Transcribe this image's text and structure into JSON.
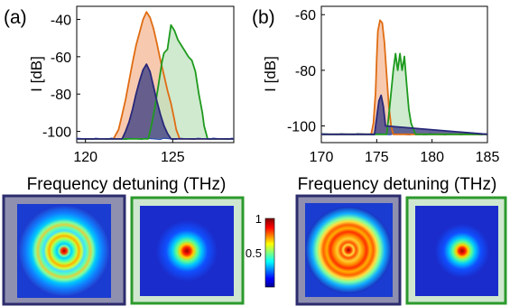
{
  "figure": {
    "panel_a_label": "(a)",
    "panel_b_label": "(b)",
    "colorbar_ticks": [
      "1",
      "0.5"
    ]
  },
  "colors": {
    "orange": "#e06c12",
    "green": "#1d9a1d",
    "navy": "#28287a",
    "blue_noise": "#2a4fb0",
    "frame_navy": "#2c2c6e",
    "frame_navy_fill": "#8f8fb0",
    "frame_green": "#2c9a2c",
    "frame_green_fill": "#cfe7cf"
  },
  "chart_data": [
    {
      "type": "area",
      "panel": "(a)",
      "xlabel": "Frequency detuning (THz)",
      "ylabel": "I [dB]",
      "xlim": [
        119.5,
        128.5
      ],
      "ylim": [
        -106,
        -33
      ],
      "xticks": [
        "120",
        "125"
      ],
      "xtick_values": [
        120,
        125
      ],
      "yticks": [
        "-40",
        "-60",
        "-80",
        "-100"
      ],
      "ytick_values": [
        -40,
        -60,
        -80,
        -100
      ],
      "noise_floor": -104,
      "series": [
        {
          "color": "orange",
          "x": [
            119.5,
            121.6,
            121.9,
            122.1,
            122.3,
            122.5,
            122.7,
            122.9,
            123.1,
            123.3,
            123.5,
            123.7,
            123.9,
            124.1,
            124.3,
            124.5,
            124.7,
            124.9,
            125.1,
            125.2,
            125.4,
            128.5
          ],
          "y": [
            -104,
            -104,
            -99,
            -91,
            -83,
            -73,
            -63,
            -54,
            -47,
            -40,
            -36,
            -39,
            -45,
            -53,
            -62,
            -70,
            -78,
            -85,
            -94,
            -99,
            -104,
            -104
          ]
        },
        {
          "color": "green",
          "x": [
            119.5,
            123.6,
            123.8,
            124.0,
            124.2,
            124.4,
            124.5,
            124.7,
            124.9,
            125.1,
            125.3,
            125.5,
            125.7,
            125.9,
            126.1,
            126.3,
            126.5,
            126.7,
            126.8,
            127.0,
            128.5
          ],
          "y": [
            -104,
            -104,
            -96,
            -86,
            -74,
            -62,
            -58,
            -56,
            -43,
            -46,
            -51,
            -54,
            -57,
            -60,
            -62,
            -68,
            -80,
            -90,
            -97,
            -104,
            -104
          ]
        },
        {
          "color": "navy",
          "x": [
            119.5,
            122.1,
            122.3,
            122.5,
            122.7,
            122.9,
            123.1,
            123.3,
            123.5,
            123.7,
            123.9,
            124.1,
            124.3,
            124.5,
            124.7,
            124.9,
            128.5
          ],
          "y": [
            -104,
            -104,
            -100,
            -95,
            -88,
            -80,
            -73,
            -67,
            -64,
            -68,
            -76,
            -84,
            -91,
            -97,
            -101,
            -104,
            -104
          ]
        }
      ]
    },
    {
      "type": "area",
      "panel": "(b)",
      "xlabel": "Frequency detuning (THz)",
      "ylabel": "I [dB]",
      "xlim": [
        170,
        185
      ],
      "ylim": [
        -106,
        -57
      ],
      "xticks": [
        "170",
        "175",
        "180",
        "185"
      ],
      "xtick_values": [
        170,
        175,
        180,
        185
      ],
      "yticks": [
        "-60",
        "-80",
        "-100"
      ],
      "ytick_values": [
        -60,
        -80,
        -100
      ],
      "noise_floor": -103,
      "series": [
        {
          "color": "orange",
          "x": [
            170,
            174.5,
            174.7,
            174.9,
            175.0,
            175.1,
            175.3,
            175.5,
            175.7,
            175.9,
            176.1,
            176.3,
            176.5,
            185
          ],
          "y": [
            -103,
            -103,
            -99,
            -88,
            -76,
            -66,
            -62,
            -63,
            -70,
            -82,
            -93,
            -100,
            -103,
            -103
          ]
        },
        {
          "color": "green",
          "x": [
            170,
            175.9,
            176.1,
            176.3,
            176.5,
            176.7,
            176.9,
            177.1,
            177.3,
            177.5,
            177.7,
            177.9,
            178.1,
            178.3,
            178.5,
            185
          ],
          "y": [
            -103,
            -103,
            -96,
            -88,
            -80,
            -74,
            -80,
            -74,
            -80,
            -75,
            -85,
            -94,
            -99,
            -101,
            -103,
            -103
          ]
        },
        {
          "color": "navy",
          "x": [
            170,
            174.8,
            175.0,
            175.2,
            175.4,
            175.6,
            175.8,
            185
          ],
          "y": [
            -103,
            -103,
            -97,
            -91,
            -89,
            -93,
            -100,
            -103
          ]
        }
      ]
    }
  ],
  "images": [
    {
      "frame": "navy",
      "pattern": "rings"
    },
    {
      "frame": "green",
      "pattern": "spot"
    },
    {
      "frame": "navy",
      "pattern": "speckle"
    },
    {
      "frame": "green",
      "pattern": "spot"
    }
  ]
}
